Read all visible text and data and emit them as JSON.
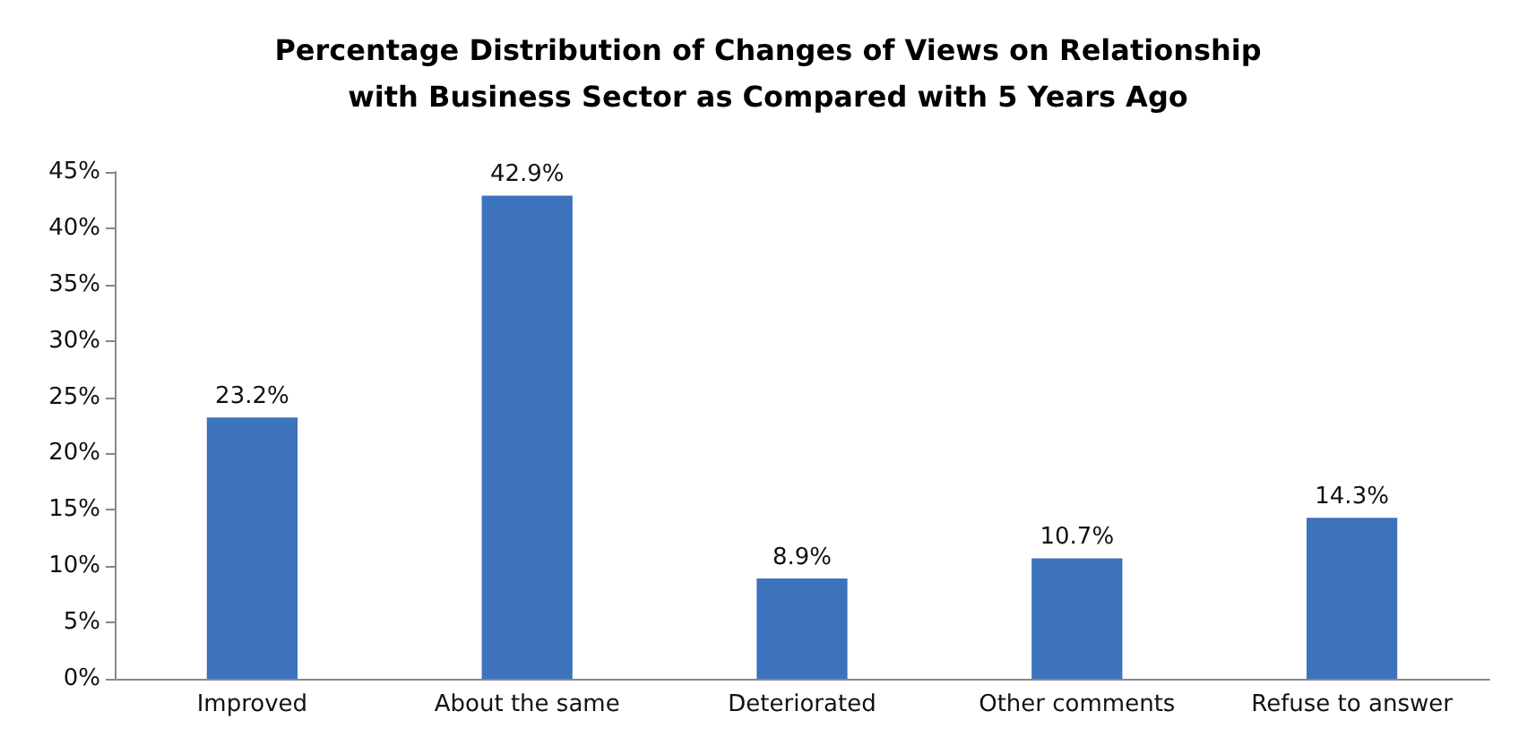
{
  "chart_data": {
    "type": "bar",
    "title": "Percentage Distribution of Changes of Views on Relationship\nwith Business Sector as Compared with 5 Years Ago",
    "categories": [
      "Improved",
      "About the same",
      "Deteriorated",
      "Other comments",
      "Refuse to answer"
    ],
    "values": [
      23.2,
      42.9,
      8.9,
      10.7,
      14.3
    ],
    "value_labels": [
      "23.2%",
      "42.9%",
      "8.9%",
      "10.7%",
      "14.3%"
    ],
    "color": "#3d72bd",
    "ylim": [
      0,
      45
    ],
    "yticks": [
      {
        "value": 0,
        "label": "0%"
      },
      {
        "value": 5,
        "label": "5%"
      },
      {
        "value": 10,
        "label": "10%"
      },
      {
        "value": 15,
        "label": "15%"
      },
      {
        "value": 20,
        "label": "20%"
      },
      {
        "value": 25,
        "label": "25%"
      },
      {
        "value": 30,
        "label": "30%"
      },
      {
        "value": 35,
        "label": "35%"
      },
      {
        "value": 40,
        "label": "40%"
      },
      {
        "value": 45,
        "label": "45%"
      }
    ],
    "grid": false
  }
}
